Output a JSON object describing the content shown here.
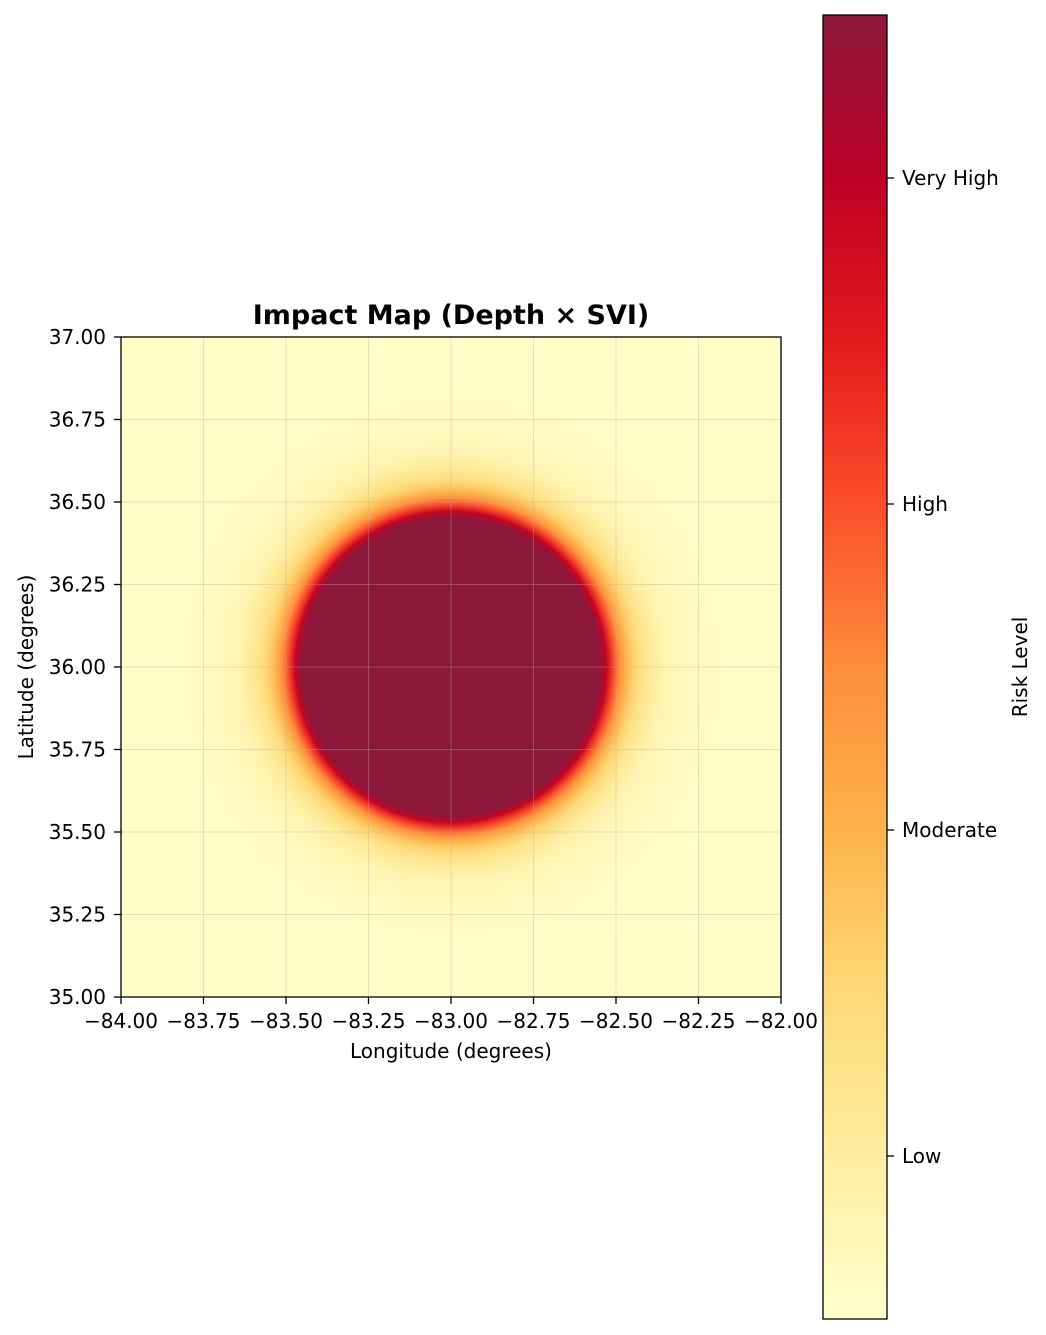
{
  "chart_data": {
    "type": "heatmap",
    "title": "Impact Map (Depth × SVI)",
    "xlabel": "Longitude (degrees)",
    "ylabel": "Latitude (degrees)",
    "xlim": [
      -84.0,
      -82.0
    ],
    "ylim": [
      35.0,
      37.0
    ],
    "x_ticks": [
      -84.0,
      -83.75,
      -83.5,
      -83.25,
      -83.0,
      -82.75,
      -82.5,
      -82.25,
      -82.0
    ],
    "x_tick_labels": [
      "−84.00",
      "−83.75",
      "−83.50",
      "−83.25",
      "−83.00",
      "−82.75",
      "−82.50",
      "−82.25",
      "−82.00"
    ],
    "y_ticks": [
      35.0,
      35.25,
      35.5,
      35.75,
      36.0,
      36.25,
      36.5,
      36.75,
      37.0
    ],
    "y_tick_labels": [
      "35.00",
      "35.25",
      "35.50",
      "35.75",
      "36.00",
      "36.25",
      "36.50",
      "36.75",
      "37.00"
    ],
    "grid": true,
    "colormap": "YlOrRd",
    "impact_field": {
      "center_lon": -83.0,
      "center_lat": 36.0,
      "core_radius_deg": 0.46,
      "outer_radius_deg": 0.82,
      "core_value": 1.0,
      "edge_value": 0.02
    },
    "colorbar": {
      "label": "Risk Level",
      "ticks": [
        {
          "value": 0.125,
          "label": "Low"
        },
        {
          "value": 0.375,
          "label": "Moderate"
        },
        {
          "value": 0.625,
          "label": "High"
        },
        {
          "value": 0.875,
          "label": "Very High"
        }
      ]
    },
    "colors": {
      "stops": [
        "#ffffcc",
        "#ffeda0",
        "#fed976",
        "#feb24c",
        "#fd8d3c",
        "#fc4e2a",
        "#e31a1c",
        "#bd0026",
        "#8c173a"
      ]
    }
  }
}
